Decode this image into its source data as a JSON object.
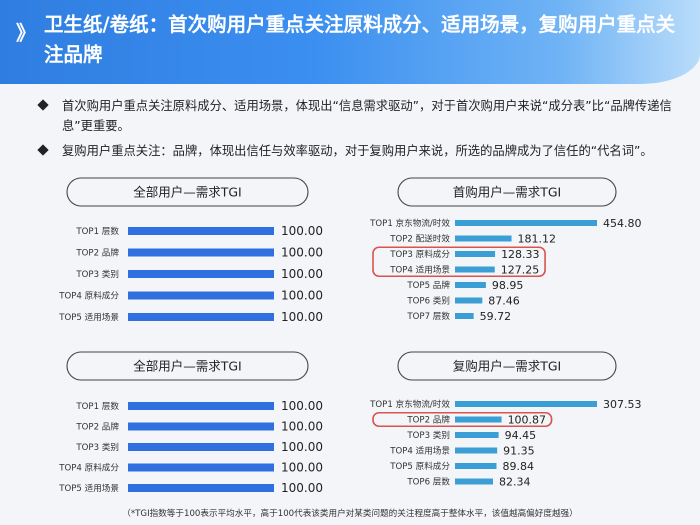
{
  "header": {
    "chevron": "》",
    "title": "卫生纸/卷纸：首次购用户重点关注原料成分、适用场景，复购用户重点关注品牌"
  },
  "bullets": [
    "首次购用户重点关注原料成分、适用场景，体现出“信息需求驱动”，对于首次购用户来说“成分表”比“品牌传递信息”更重要。",
    "复购用户重点关注：品牌，体现出信任与效率驱动，对于复购用户来说，所选的品牌成为了信任的“代名词”。"
  ],
  "footnote": "（*TGI指数等于100表示平均水平，高于100代表该类用户对某类问题的关注程度高于整体水平，该值越高偏好度越强）",
  "colors": {
    "header": "#3b8ff0",
    "bar_all": "#2f6fe0",
    "bar_first": "#3b9fd6",
    "highlight": "#d9534f"
  },
  "chart_data": [
    {
      "type": "bar",
      "orientation": "horizontal",
      "title": "全部用户—需求TGI",
      "categories": [
        "TOP1 层数",
        "TOP2 品牌",
        "TOP3 类别",
        "TOP4 原料成分",
        "TOP5 适用场景"
      ],
      "values": [
        100.0,
        100.0,
        100.0,
        100.0,
        100.0
      ],
      "value_labels": [
        "100.00",
        "100.00",
        "100.00",
        "100.00",
        "100.00"
      ],
      "highlight": [],
      "xlim": [
        0,
        100
      ]
    },
    {
      "type": "bar",
      "orientation": "horizontal",
      "title": "首购用户—需求TGI",
      "categories": [
        "TOP1 京东物流/时效",
        "TOP2 配送时效",
        "TOP3 原料成分",
        "TOP4 适用场景",
        "TOP5 品牌",
        "TOP6 类别",
        "TOP7 层数"
      ],
      "values": [
        454.8,
        181.12,
        128.33,
        127.25,
        98.95,
        87.46,
        59.72
      ],
      "value_labels": [
        "454.80",
        "181.12",
        "128.33",
        "127.25",
        "98.95",
        "87.46",
        "59.72"
      ],
      "highlight": [
        2,
        3
      ],
      "xlim": [
        0,
        454.8
      ]
    },
    {
      "type": "bar",
      "orientation": "horizontal",
      "title": "全部用户—需求TGI",
      "categories": [
        "TOP1 层数",
        "TOP2 品牌",
        "TOP3 类别",
        "TOP4 原料成分",
        "TOP5 适用场景"
      ],
      "values": [
        100.0,
        100.0,
        100.0,
        100.0,
        100.0
      ],
      "value_labels": [
        "100.00",
        "100.00",
        "100.00",
        "100.00",
        "100.00"
      ],
      "highlight": [],
      "xlim": [
        0,
        100
      ]
    },
    {
      "type": "bar",
      "orientation": "horizontal",
      "title": "复购用户—需求TGI",
      "categories": [
        "TOP1 京东物流/时效",
        "TOP2 品牌",
        "TOP3 类别",
        "TOP4 适用场景",
        "TOP5 原料成分",
        "TOP6 层数"
      ],
      "values": [
        307.53,
        100.87,
        94.45,
        91.35,
        89.84,
        82.34
      ],
      "value_labels": [
        "307.53",
        "100.87",
        "94.45",
        "91.35",
        "89.84",
        "82.34"
      ],
      "highlight": [
        1
      ],
      "xlim": [
        0,
        307.53
      ]
    }
  ]
}
